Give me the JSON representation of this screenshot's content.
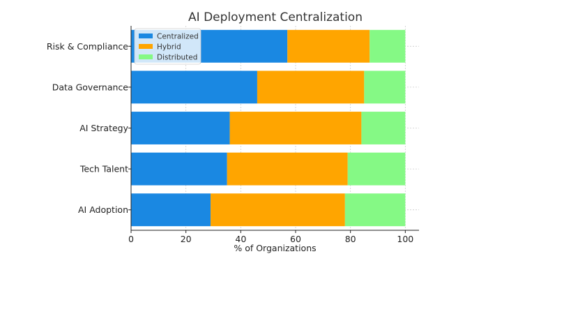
{
  "chart_data": {
    "type": "bar",
    "orientation": "horizontal",
    "stacked": true,
    "title": "AI Deployment Centralization",
    "xlabel": "% of Organizations",
    "ylabel": "",
    "xlim": [
      0,
      105
    ],
    "xticks": [
      0,
      20,
      40,
      60,
      80,
      100
    ],
    "grid": true,
    "legend_position": "top-left",
    "categories": [
      "Risk & Compliance",
      "Data Governance",
      "AI Strategy",
      "Tech Talent",
      "AI Adoption"
    ],
    "series": [
      {
        "name": "Centralized",
        "color": "#1a88e2",
        "values": [
          57,
          46,
          36,
          35,
          29
        ]
      },
      {
        "name": "Hybrid",
        "color": "#ffa500",
        "values": [
          30,
          39,
          48,
          44,
          49
        ]
      },
      {
        "name": "Distributed",
        "color": "#85f985",
        "values": [
          13,
          15,
          16,
          21,
          22
        ]
      }
    ]
  }
}
